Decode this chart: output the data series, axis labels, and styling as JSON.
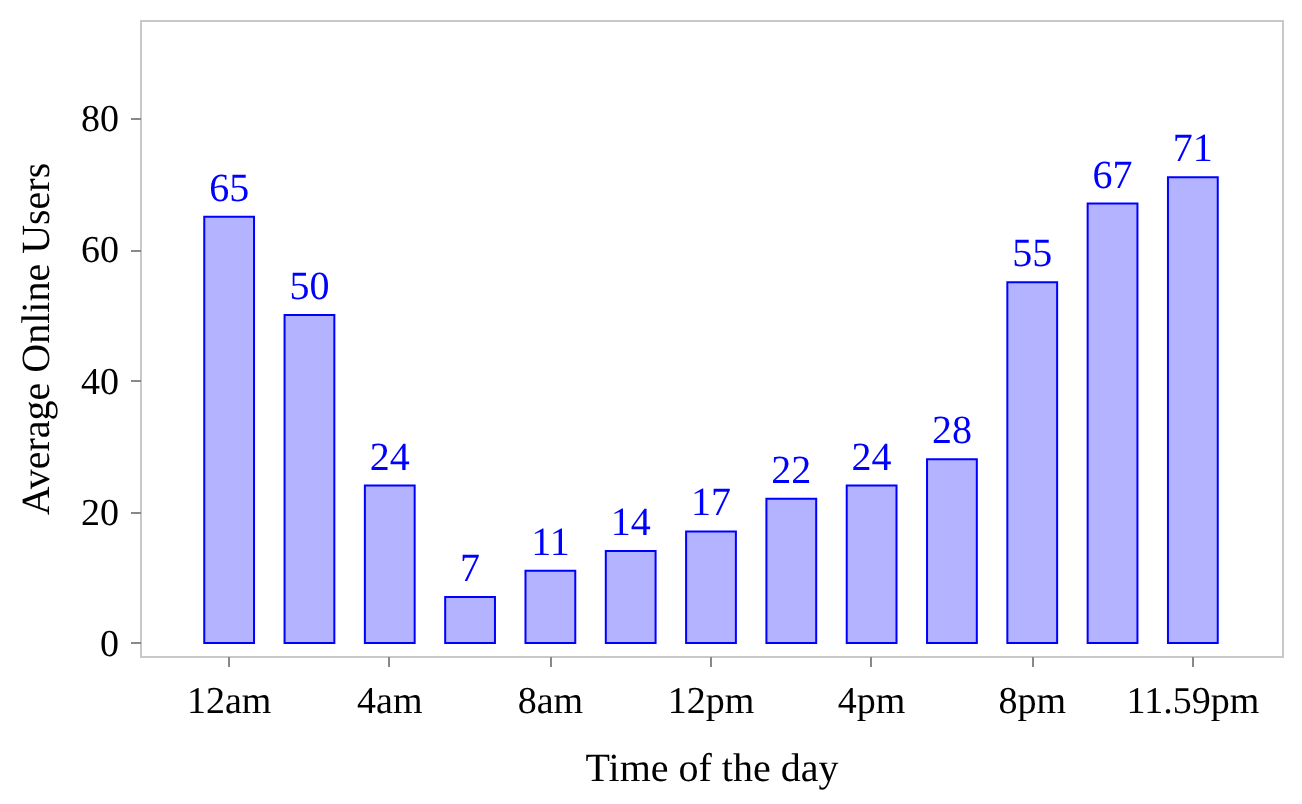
{
  "chart_data": {
    "type": "bar",
    "xlabel": "Time of the day",
    "ylabel": "Average Online Users",
    "categories": [
      "12am",
      null,
      "4am",
      null,
      "8am",
      null,
      "12pm",
      null,
      "4pm",
      null,
      "8pm",
      null,
      "11.59pm"
    ],
    "values": [
      65,
      50,
      24,
      7,
      11,
      14,
      17,
      22,
      24,
      28,
      55,
      67,
      71
    ],
    "color": "#b3b3ff",
    "ylim": [
      -2,
      95
    ],
    "yticks": [
      0,
      20,
      40,
      60,
      80
    ],
    "data_labels": true,
    "grid": false
  }
}
